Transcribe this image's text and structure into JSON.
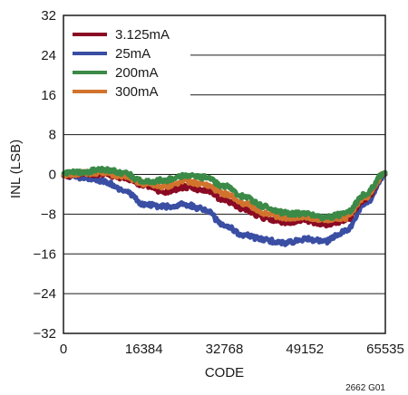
{
  "chart_data": {
    "type": "line",
    "xlabel": "CODE",
    "ylabel": "INL (LSB)",
    "xlim": [
      0,
      65535
    ],
    "ylim": [
      -32,
      32
    ],
    "x_ticks": [
      0,
      16384,
      32768,
      49152,
      65535
    ],
    "y_ticks": [
      32,
      24,
      16,
      8,
      0,
      -8,
      -16,
      -24,
      -32
    ],
    "y_tick_labels": [
      "32",
      "24",
      "16",
      "8",
      "0",
      "−8",
      "−16",
      "−24",
      "−32"
    ],
    "grid": true,
    "legend_position": "top-left",
    "series": [
      {
        "name": "3.125mA",
        "color": "#8b0a23",
        "x": [
          0,
          4096,
          8192,
          12288,
          16384,
          20480,
          24576,
          28672,
          32768,
          36864,
          40960,
          45056,
          49152,
          53248,
          57344,
          61440,
          65535
        ],
        "values": [
          -0.3,
          0.2,
          0,
          -0.6,
          -2.2,
          -3.5,
          -2.6,
          -3.2,
          -5.2,
          -7.0,
          -8.8,
          -9.6,
          -9.3,
          -10.0,
          -9.4,
          -5.0,
          0.2
        ]
      },
      {
        "name": "25mA",
        "color": "#3a4ea3",
        "x": [
          0,
          4096,
          8192,
          12288,
          16384,
          20480,
          24576,
          28672,
          32768,
          36864,
          40960,
          45056,
          49152,
          53248,
          57344,
          61440,
          65535
        ],
        "values": [
          -0.2,
          -0.6,
          -1.4,
          -3.3,
          -6.0,
          -6.5,
          -6.0,
          -7.0,
          -10.3,
          -12.3,
          -13.2,
          -13.8,
          -13.0,
          -13.5,
          -11.5,
          -6.2,
          0
        ]
      },
      {
        "name": "200mA",
        "color": "#3b8a47",
        "x": [
          0,
          4096,
          8192,
          12288,
          16384,
          20480,
          24576,
          28672,
          32768,
          36864,
          40960,
          45056,
          49152,
          53248,
          57344,
          61440,
          65535
        ],
        "values": [
          0.2,
          0.5,
          1.0,
          0.3,
          -1.5,
          -1.2,
          -0.2,
          -0.6,
          -2.3,
          -4.5,
          -6.5,
          -7.8,
          -8.0,
          -8.6,
          -8.0,
          -4.0,
          0.4
        ]
      },
      {
        "name": "300mA",
        "color": "#d2732d",
        "x": [
          0,
          4096,
          8192,
          12288,
          16384,
          20480,
          24576,
          28672,
          32768,
          36864,
          40960,
          45056,
          49152,
          53248,
          57344,
          61440,
          65535
        ],
        "values": [
          -0.1,
          0.3,
          0.3,
          -0.3,
          -1.8,
          -2.4,
          -1.4,
          -2.0,
          -3.9,
          -5.8,
          -7.7,
          -8.7,
          -8.7,
          -9.3,
          -8.7,
          -4.6,
          0.3
        ]
      }
    ]
  },
  "figure_id": "2662 G01"
}
